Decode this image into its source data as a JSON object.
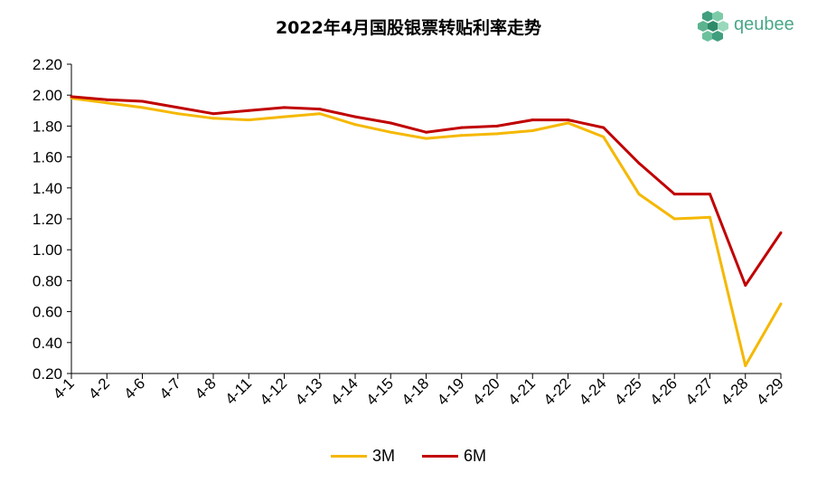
{
  "logo": {
    "text": "qeubee",
    "icon": "cube-cluster-icon",
    "color": "#4aa888"
  },
  "chart_data": {
    "type": "line",
    "title": "2022年4月国股银票转贴利率走势",
    "xlabel": "",
    "ylabel": "",
    "ylim": [
      0.2,
      2.2
    ],
    "yticks": [
      "0.20",
      "0.40",
      "0.60",
      "0.80",
      "1.00",
      "1.20",
      "1.40",
      "1.60",
      "1.80",
      "2.00",
      "2.20"
    ],
    "categories": [
      "4-1",
      "4-2",
      "4-6",
      "4-7",
      "4-8",
      "4-11",
      "4-12",
      "4-13",
      "4-14",
      "4-15",
      "4-18",
      "4-19",
      "4-20",
      "4-21",
      "4-22",
      "4-24",
      "4-25",
      "4-26",
      "4-27",
      "4-28",
      "4-29"
    ],
    "series": [
      {
        "name": "3M",
        "color": "#f5b800",
        "values": [
          1.98,
          1.95,
          1.92,
          1.88,
          1.85,
          1.84,
          1.86,
          1.88,
          1.81,
          1.76,
          1.72,
          1.74,
          1.75,
          1.77,
          1.82,
          1.73,
          1.36,
          1.2,
          1.21,
          0.25,
          0.65
        ]
      },
      {
        "name": "6M",
        "color": "#c00000",
        "values": [
          1.99,
          1.97,
          1.96,
          1.92,
          1.88,
          1.9,
          1.92,
          1.91,
          1.86,
          1.82,
          1.76,
          1.79,
          1.8,
          1.84,
          1.84,
          1.79,
          1.56,
          1.36,
          1.36,
          0.77,
          1.11
        ]
      }
    ],
    "grid": false,
    "legend_position": "bottom"
  }
}
